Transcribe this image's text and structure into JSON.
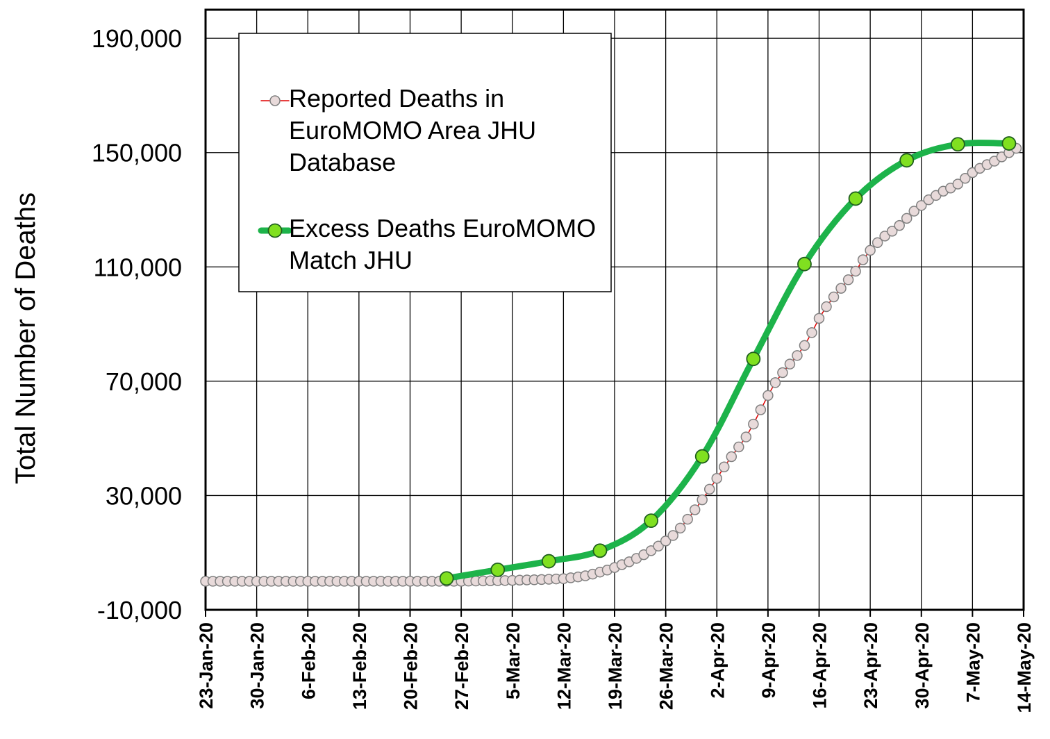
{
  "chart_data": {
    "type": "line",
    "y_label": "Total Number of  Deaths",
    "xlim": [
      "2020-01-23",
      "2020-05-14"
    ],
    "xticks": [
      {
        "value": "2020-01-23",
        "label": "23-Jan-20"
      },
      {
        "value": "2020-01-30",
        "label": "30-Jan-20"
      },
      {
        "value": "2020-02-06",
        "label": "6-Feb-20"
      },
      {
        "value": "2020-02-13",
        "label": "13-Feb-20"
      },
      {
        "value": "2020-02-20",
        "label": "20-Feb-20"
      },
      {
        "value": "2020-02-27",
        "label": "27-Feb-20"
      },
      {
        "value": "2020-03-05",
        "label": "5-Mar-20"
      },
      {
        "value": "2020-03-12",
        "label": "12-Mar-20"
      },
      {
        "value": "2020-03-19",
        "label": "19-Mar-20"
      },
      {
        "value": "2020-03-26",
        "label": "26-Mar-20"
      },
      {
        "value": "2020-04-02",
        "label": "2-Apr-20"
      },
      {
        "value": "2020-04-09",
        "label": "9-Apr-20"
      },
      {
        "value": "2020-04-16",
        "label": "16-Apr-20"
      },
      {
        "value": "2020-04-23",
        "label": "23-Apr-20"
      },
      {
        "value": "2020-04-30",
        "label": "30-Apr-20"
      },
      {
        "value": "2020-05-07",
        "label": "7-May-20"
      },
      {
        "value": "2020-05-14",
        "label": "14-May-20"
      }
    ],
    "ylim": [
      -10000,
      200000
    ],
    "yticks": [
      {
        "value": -10000,
        "label": "-10,000"
      },
      {
        "value": 30000,
        "label": "30,000"
      },
      {
        "value": 70000,
        "label": "70,000"
      },
      {
        "value": 110000,
        "label": "110,000"
      },
      {
        "value": 150000,
        "label": "150,000"
      },
      {
        "value": 190000,
        "label": "190,000"
      }
    ],
    "grid": true,
    "legend": "upper left",
    "series": [
      {
        "name": "Reported Deaths in EuroMOMO Area JHU Database",
        "color": "#e00000",
        "marker_color": "#e8dada",
        "smooth": false,
        "x": [
          "2020-01-23",
          "2020-01-24",
          "2020-01-25",
          "2020-01-26",
          "2020-01-27",
          "2020-01-28",
          "2020-01-29",
          "2020-01-30",
          "2020-01-31",
          "2020-02-01",
          "2020-02-02",
          "2020-02-03",
          "2020-02-04",
          "2020-02-05",
          "2020-02-06",
          "2020-02-07",
          "2020-02-08",
          "2020-02-09",
          "2020-02-10",
          "2020-02-11",
          "2020-02-12",
          "2020-02-13",
          "2020-02-14",
          "2020-02-15",
          "2020-02-16",
          "2020-02-17",
          "2020-02-18",
          "2020-02-19",
          "2020-02-20",
          "2020-02-21",
          "2020-02-22",
          "2020-02-23",
          "2020-02-24",
          "2020-02-25",
          "2020-02-26",
          "2020-02-27",
          "2020-02-28",
          "2020-02-29",
          "2020-03-01",
          "2020-03-02",
          "2020-03-03",
          "2020-03-04",
          "2020-03-05",
          "2020-03-06",
          "2020-03-07",
          "2020-03-08",
          "2020-03-09",
          "2020-03-10",
          "2020-03-11",
          "2020-03-12",
          "2020-03-13",
          "2020-03-14",
          "2020-03-15",
          "2020-03-16",
          "2020-03-17",
          "2020-03-18",
          "2020-03-19",
          "2020-03-20",
          "2020-03-21",
          "2020-03-22",
          "2020-03-23",
          "2020-03-24",
          "2020-03-25",
          "2020-03-26",
          "2020-03-27",
          "2020-03-28",
          "2020-03-29",
          "2020-03-30",
          "2020-03-31",
          "2020-04-01",
          "2020-04-02",
          "2020-04-03",
          "2020-04-04",
          "2020-04-05",
          "2020-04-06",
          "2020-04-07",
          "2020-04-08",
          "2020-04-09",
          "2020-04-10",
          "2020-04-11",
          "2020-04-12",
          "2020-04-13",
          "2020-04-14",
          "2020-04-15",
          "2020-04-16",
          "2020-04-17",
          "2020-04-18",
          "2020-04-19",
          "2020-04-20",
          "2020-04-21",
          "2020-04-22",
          "2020-04-23",
          "2020-04-24",
          "2020-04-25",
          "2020-04-26",
          "2020-04-27",
          "2020-04-28",
          "2020-04-29",
          "2020-04-30",
          "2020-05-01",
          "2020-05-02",
          "2020-05-03",
          "2020-05-04",
          "2020-05-05",
          "2020-05-06",
          "2020-05-07",
          "2020-05-08",
          "2020-05-09",
          "2020-05-10",
          "2020-05-11",
          "2020-05-12",
          "2020-05-13"
        ],
        "values": [
          0,
          0,
          0,
          0,
          0,
          0,
          0,
          0,
          0,
          0,
          0,
          0,
          0,
          0,
          0,
          0,
          0,
          0,
          0,
          0,
          0,
          0,
          0,
          0,
          0,
          0,
          0,
          0,
          0,
          0,
          0,
          0,
          0,
          0,
          0,
          0,
          50,
          80,
          110,
          150,
          200,
          250,
          300,
          400,
          450,
          500,
          600,
          700,
          800,
          900,
          1200,
          1500,
          1900,
          2500,
          3200,
          3900,
          4800,
          5800,
          6800,
          8000,
          9300,
          10700,
          12300,
          14100,
          16000,
          18600,
          21700,
          25000,
          28500,
          32200,
          36000,
          40000,
          43600,
          47000,
          50500,
          55000,
          60000,
          65000,
          69500,
          73000,
          76000,
          79000,
          82500,
          87000,
          92000,
          96100,
          99500,
          102500,
          105500,
          108500,
          112500,
          115800,
          118500,
          120800,
          122500,
          124500,
          127000,
          129500,
          131500,
          133500,
          135000,
          136500,
          137600,
          139000,
          141000,
          143000,
          144500,
          145800,
          147000,
          148500,
          150000,
          151500
        ]
      },
      {
        "name": "Excess Deaths EuroMOMO Match JHU",
        "color": "#1db34a",
        "marker_color": "#80e020",
        "smooth": true,
        "x": [
          "2020-02-25",
          "2020-03-03",
          "2020-03-10",
          "2020-03-17",
          "2020-03-24",
          "2020-03-31",
          "2020-04-07",
          "2020-04-14",
          "2020-04-21",
          "2020-04-28",
          "2020-05-05",
          "2020-05-12"
        ],
        "values": [
          1000,
          4000,
          7000,
          10700,
          21200,
          43700,
          77800,
          111000,
          133900,
          147300,
          152900,
          153200
        ]
      }
    ]
  }
}
